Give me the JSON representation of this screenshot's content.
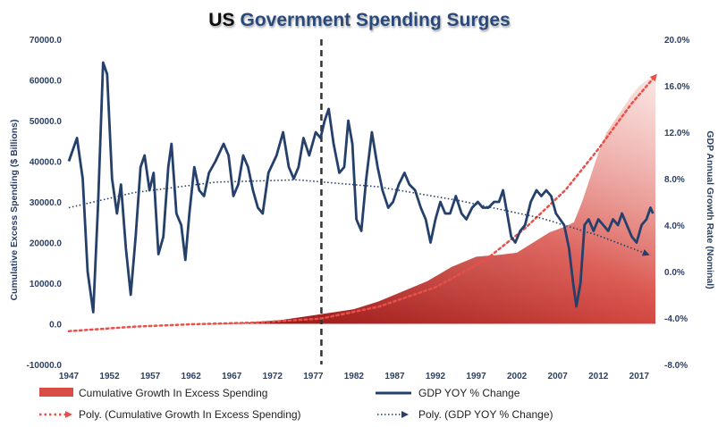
{
  "chart_data": {
    "type": "combo-area-line",
    "title": {
      "prefix": "US",
      "main": "Government Spending Surges"
    },
    "colors": {
      "title_prefix": "#111111",
      "title_main": "#2a4a7a",
      "axis_text": "#2b3f63",
      "area_dark": "#8f1010",
      "area_mid": "#d84e46",
      "area_light": "#f7cfcb",
      "gdp_line": "#24406b",
      "trend_excess": "#e8504a",
      "trend_gdp": "#24406b",
      "marker_line": "#333333"
    },
    "x": {
      "min": 1947,
      "max": 2019,
      "ticks": [
        "1947",
        "1952",
        "1957",
        "1962",
        "1967",
        "1972",
        "1977",
        "1982",
        "1987",
        "1992",
        "1997",
        "2002",
        "2007",
        "2012",
        "2017"
      ]
    },
    "y_left": {
      "label": "Cumulative Excess Spending ($ Billions)",
      "min": -10000,
      "max": 70000,
      "ticks": [
        "-10000.0",
        "0.0",
        "10000.0",
        "20000.0",
        "30000.0",
        "40000.0",
        "50000.0",
        "60000.0",
        "70000.0"
      ]
    },
    "y_right": {
      "label": "GDP Annual Growth Rate (Nominal)",
      "min": -8,
      "max": 20,
      "ticks": [
        "-8.0%",
        "-4.0%",
        "0.0%",
        "4.0%",
        "8.0%",
        "12.0%",
        "16.0%",
        "20.0%"
      ]
    },
    "marker_year": 1978,
    "series": [
      {
        "name": "Cumulative Growth In Excess Spending",
        "axis": "left",
        "kind": "area",
        "points": [
          [
            1963,
            0
          ],
          [
            1968,
            200
          ],
          [
            1973,
            900
          ],
          [
            1978,
            2400
          ],
          [
            1982,
            3600
          ],
          [
            1985,
            5500
          ],
          [
            1988,
            8000
          ],
          [
            1991,
            10500
          ],
          [
            1994,
            14000
          ],
          [
            1997,
            16500
          ],
          [
            2000,
            17000
          ],
          [
            2002,
            17500
          ],
          [
            2004,
            20000
          ],
          [
            2006,
            22500
          ],
          [
            2008,
            24000
          ],
          [
            2009,
            25000
          ],
          [
            2010,
            30000
          ],
          [
            2011,
            36000
          ],
          [
            2012,
            42000
          ],
          [
            2013,
            47000
          ],
          [
            2014,
            50000
          ],
          [
            2015,
            53000
          ],
          [
            2016,
            56000
          ],
          [
            2017,
            58500
          ],
          [
            2018,
            60000
          ],
          [
            2019,
            61000
          ]
        ]
      },
      {
        "name": "GDP YOY % Change",
        "axis": "right",
        "kind": "line",
        "points": [
          [
            1947,
            9.5
          ],
          [
            1948,
            11.5
          ],
          [
            1948.7,
            8
          ],
          [
            1949.3,
            0
          ],
          [
            1950,
            -3.5
          ],
          [
            1950.6,
            6
          ],
          [
            1951.2,
            18
          ],
          [
            1951.7,
            17
          ],
          [
            1952.3,
            8
          ],
          [
            1952.9,
            5
          ],
          [
            1953.4,
            7.5
          ],
          [
            1954,
            2
          ],
          [
            1954.6,
            -2
          ],
          [
            1955.2,
            3
          ],
          [
            1955.8,
            9
          ],
          [
            1956.3,
            10
          ],
          [
            1956.9,
            7
          ],
          [
            1957.4,
            8.5
          ],
          [
            1958,
            1.5
          ],
          [
            1958.6,
            3
          ],
          [
            1959.2,
            9
          ],
          [
            1959.6,
            11
          ],
          [
            1960.2,
            5
          ],
          [
            1960.8,
            4
          ],
          [
            1961.3,
            1
          ],
          [
            1961.8,
            5
          ],
          [
            1962.4,
            9
          ],
          [
            1963,
            7
          ],
          [
            1963.6,
            6.5
          ],
          [
            1964.2,
            8.5
          ],
          [
            1965,
            9.5
          ],
          [
            1966,
            11
          ],
          [
            1966.6,
            10
          ],
          [
            1967.2,
            6.5
          ],
          [
            1967.8,
            7.5
          ],
          [
            1968.4,
            10
          ],
          [
            1969,
            9
          ],
          [
            1969.6,
            7
          ],
          [
            1970.2,
            5.5
          ],
          [
            1970.8,
            5
          ],
          [
            1971.5,
            8.5
          ],
          [
            1972.5,
            10
          ],
          [
            1973.3,
            12
          ],
          [
            1974,
            9
          ],
          [
            1974.6,
            8
          ],
          [
            1975.2,
            9
          ],
          [
            1975.8,
            11.5
          ],
          [
            1976.5,
            10
          ],
          [
            1977.3,
            12
          ],
          [
            1977.9,
            11.5
          ],
          [
            1978.4,
            13
          ],
          [
            1978.9,
            14
          ],
          [
            1979.5,
            11
          ],
          [
            1980.2,
            8.5
          ],
          [
            1980.8,
            9
          ],
          [
            1981.3,
            13
          ],
          [
            1981.8,
            11
          ],
          [
            1982.3,
            4.5
          ],
          [
            1982.9,
            3.5
          ],
          [
            1983.5,
            8
          ],
          [
            1984.2,
            12
          ],
          [
            1984.9,
            9
          ],
          [
            1985.5,
            7
          ],
          [
            1986.2,
            5.5
          ],
          [
            1986.8,
            6
          ],
          [
            1987.5,
            7.5
          ],
          [
            1988.2,
            8.5
          ],
          [
            1988.8,
            7.5
          ],
          [
            1989.5,
            7
          ],
          [
            1990.2,
            5.5
          ],
          [
            1990.8,
            4.5
          ],
          [
            1991.4,
            2.5
          ],
          [
            1992,
            4.5
          ],
          [
            1992.6,
            6
          ],
          [
            1993.2,
            5
          ],
          [
            1993.8,
            5
          ],
          [
            1994.5,
            6.5
          ],
          [
            1995.2,
            5
          ],
          [
            1995.8,
            4.5
          ],
          [
            1996.5,
            5.5
          ],
          [
            1997.2,
            6
          ],
          [
            1997.8,
            5.5
          ],
          [
            1998.5,
            5.5
          ],
          [
            1999.2,
            6
          ],
          [
            1999.8,
            6
          ],
          [
            2000.3,
            7
          ],
          [
            2000.8,
            5
          ],
          [
            2001.3,
            3
          ],
          [
            2001.8,
            2.5
          ],
          [
            2002.4,
            3.5
          ],
          [
            2003,
            4
          ],
          [
            2003.7,
            6
          ],
          [
            2004.4,
            7
          ],
          [
            2005,
            6.5
          ],
          [
            2005.6,
            7
          ],
          [
            2006.2,
            6.5
          ],
          [
            2006.8,
            5
          ],
          [
            2007.3,
            4.5
          ],
          [
            2007.8,
            4
          ],
          [
            2008.4,
            2
          ],
          [
            2008.9,
            -1
          ],
          [
            2009.3,
            -3
          ],
          [
            2009.8,
            -1
          ],
          [
            2010.3,
            4
          ],
          [
            2010.8,
            4.5
          ],
          [
            2011.4,
            3.5
          ],
          [
            2012,
            4.5
          ],
          [
            2012.6,
            4
          ],
          [
            2013.2,
            3.5
          ],
          [
            2013.8,
            4.5
          ],
          [
            2014.4,
            4
          ],
          [
            2014.9,
            5
          ],
          [
            2015.5,
            4
          ],
          [
            2016.1,
            3
          ],
          [
            2016.7,
            2.5
          ],
          [
            2017.3,
            4
          ],
          [
            2017.9,
            4.5
          ],
          [
            2018.4,
            5.5
          ],
          [
            2018.7,
            5
          ]
        ]
      },
      {
        "name": "Poly. (Cumulative Growth In Excess Spending)",
        "axis": "left",
        "kind": "trend",
        "points": [
          [
            1947,
            -1800
          ],
          [
            1955,
            -700
          ],
          [
            1962,
            -100
          ],
          [
            1970,
            300
          ],
          [
            1978,
            1300
          ],
          [
            1985,
            4200
          ],
          [
            1992,
            9000
          ],
          [
            1998,
            15500
          ],
          [
            2003,
            23500
          ],
          [
            2008,
            33000
          ],
          [
            2012,
            43000
          ],
          [
            2016,
            54000
          ],
          [
            2019,
            61000
          ]
        ]
      },
      {
        "name": "Poly. (GDP YOY % Change)",
        "axis": "right",
        "kind": "trend",
        "points": [
          [
            1947,
            5.5
          ],
          [
            1955,
            6.8
          ],
          [
            1965,
            7.7
          ],
          [
            1975,
            7.9
          ],
          [
            1985,
            7.3
          ],
          [
            1995,
            6.1
          ],
          [
            2005,
            4.6
          ],
          [
            2012,
            3.1
          ],
          [
            2018,
            1.5
          ]
        ]
      }
    ],
    "legend": {
      "items": [
        "Cumulative Growth In Excess Spending",
        "GDP YOY % Change",
        "Poly. (Cumulative Growth In Excess Spending)",
        "Poly. (GDP YOY % Change)"
      ]
    }
  }
}
